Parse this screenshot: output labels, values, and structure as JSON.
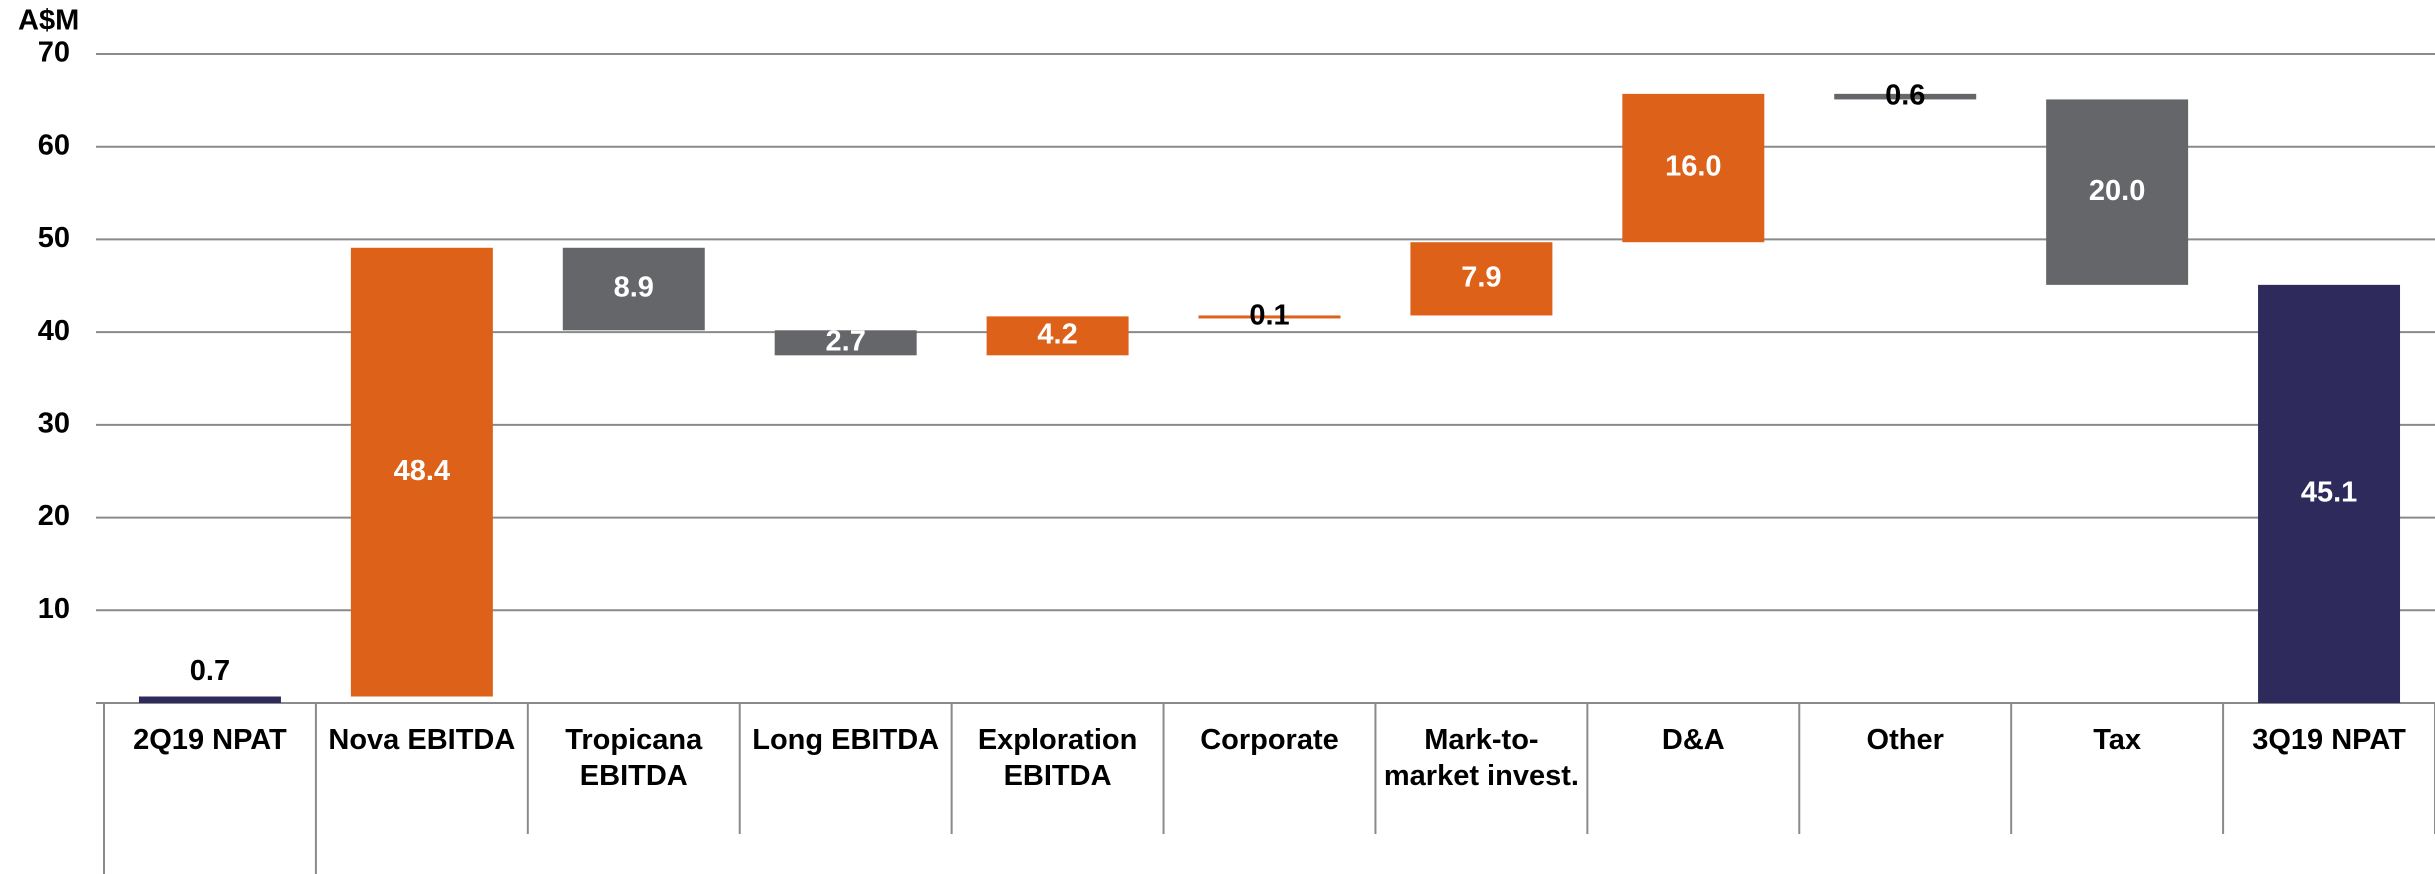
{
  "chart_data": {
    "type": "waterfall",
    "y_label": "A$M",
    "categories": [
      "2Q19 NPAT",
      "Nova EBITDA",
      "Tropicana EBITDA",
      "Long EBITDA",
      "Exploration EBITDA",
      "Corporate",
      "Mark-to-market invest.",
      "D&A",
      "Other",
      "Tax",
      "3Q19 NPAT"
    ],
    "values": [
      0.7,
      48.4,
      8.9,
      2.7,
      4.2,
      0.1,
      7.9,
      16.0,
      0.6,
      20.0,
      45.1
    ],
    "value_labels": [
      "0.7",
      "48.4",
      "8.9",
      "2.7",
      "4.2",
      "0.1",
      "7.9",
      "16.0",
      "0.6",
      "20.0",
      "45.1"
    ],
    "steps": [
      "total",
      "increase",
      "decrease",
      "decrease",
      "increase",
      "increase",
      "increase",
      "increase",
      "decrease",
      "decrease",
      "total"
    ],
    "colors": {
      "total": "#2e2a5c",
      "increase": "#dd6119",
      "decrease": "#646669"
    },
    "ylim": [
      0,
      70
    ],
    "yticks": [
      10,
      20,
      30,
      40,
      50,
      60,
      70
    ],
    "grid": true
  }
}
